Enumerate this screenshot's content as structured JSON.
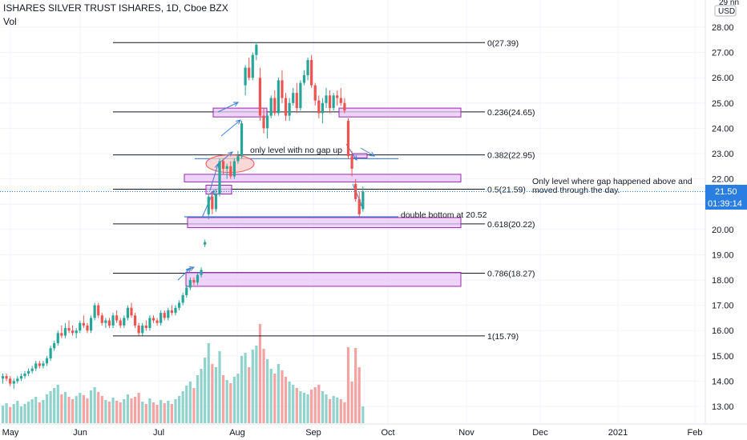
{
  "header": {
    "symbol_line": "ISHARES SILVER TRUST ISHARES, 1D, Cboe BZX",
    "indicator": "Vol"
  },
  "price_scale": {
    "currency_top": "29 nn",
    "currency": "USD",
    "current_price": "21.50",
    "countdown": "01:39:14"
  },
  "colors": {
    "up": "#26a69a",
    "down": "#ef5350",
    "vol_up": "#8fd3cc",
    "vol_down": "#f4a3a2",
    "zone_fill": "#e7c6f5",
    "zone_stroke": "#9c27b0",
    "arrow": "#3d7fd6",
    "price_label_bg": "#2a7de1"
  },
  "annotations": {
    "no_gap": "only level with no gap up",
    "gap_above": "Only level where gap happened above and moved through the day.",
    "double_bottom": "double bottom at 20.52"
  },
  "chart_data": {
    "type": "candlestick",
    "title": "ISHARES SILVER TRUST ISHARES, 1D, Cboe BZX",
    "ylim": [
      12.4,
      29.2
    ],
    "y_ticks": [
      "13.00",
      "14.00",
      "15.00",
      "16.00",
      "17.00",
      "18.00",
      "19.00",
      "20.00",
      "21.00",
      "22.00",
      "23.00",
      "24.00",
      "25.00",
      "26.00",
      "27.00",
      "28.00"
    ],
    "x_ticks": [
      "May",
      "Jun",
      "Jul",
      "Aug",
      "Sep",
      "Oct",
      "Nov",
      "Dec",
      "2021",
      "Feb"
    ],
    "fib_levels": [
      {
        "label": "0(27.39)",
        "price": 27.39
      },
      {
        "label": "0.236(24.65)",
        "price": 24.65
      },
      {
        "label": "0.382(22.95)",
        "price": 22.95
      },
      {
        "label": "0.5(21.59)",
        "price": 21.59
      },
      {
        "label": "0.618(20.22)",
        "price": 20.22
      },
      {
        "label": "0.786(18.27)",
        "price": 18.27
      },
      {
        "label": "1(15.79)",
        "price": 15.79
      }
    ],
    "candles": [
      [
        14.1,
        14.3,
        13.9,
        14.2
      ],
      [
        14.2,
        14.3,
        14.0,
        14.1
      ],
      [
        14.1,
        14.2,
        13.8,
        13.9
      ],
      [
        13.9,
        14.1,
        13.7,
        14.0
      ],
      [
        14.0,
        14.2,
        13.9,
        14.1
      ],
      [
        14.1,
        14.3,
        14.0,
        14.2
      ],
      [
        14.2,
        14.4,
        14.1,
        14.3
      ],
      [
        14.3,
        14.5,
        14.2,
        14.4
      ],
      [
        14.4,
        14.6,
        14.3,
        14.5
      ],
      [
        14.5,
        14.8,
        14.4,
        14.7
      ],
      [
        14.7,
        14.8,
        14.5,
        14.6
      ],
      [
        14.6,
        14.8,
        14.5,
        14.7
      ],
      [
        14.7,
        15.0,
        14.6,
        14.9
      ],
      [
        14.9,
        15.4,
        14.8,
        15.3
      ],
      [
        15.3,
        15.6,
        15.2,
        15.5
      ],
      [
        15.5,
        16.0,
        15.4,
        15.9
      ],
      [
        15.9,
        16.2,
        15.7,
        15.8
      ],
      [
        15.8,
        16.3,
        15.7,
        16.1
      ],
      [
        16.1,
        16.4,
        15.9,
        16.0
      ],
      [
        16.0,
        16.2,
        15.8,
        15.9
      ],
      [
        15.9,
        16.1,
        15.7,
        16.0
      ],
      [
        16.0,
        16.4,
        15.9,
        16.3
      ],
      [
        16.3,
        16.6,
        16.1,
        16.2
      ],
      [
        16.2,
        16.3,
        15.9,
        16.0
      ],
      [
        16.0,
        16.6,
        15.9,
        16.5
      ],
      [
        16.5,
        17.1,
        16.4,
        17.0
      ],
      [
        17.0,
        17.1,
        16.5,
        16.6
      ],
      [
        16.6,
        16.7,
        16.2,
        16.3
      ],
      [
        16.3,
        16.5,
        16.1,
        16.4
      ],
      [
        16.4,
        16.5,
        16.1,
        16.2
      ],
      [
        16.2,
        16.7,
        16.1,
        16.6
      ],
      [
        16.6,
        16.8,
        16.3,
        16.4
      ],
      [
        16.4,
        16.5,
        16.1,
        16.2
      ],
      [
        16.2,
        16.6,
        16.1,
        16.5
      ],
      [
        16.5,
        17.0,
        16.4,
        16.9
      ],
      [
        16.9,
        17.1,
        16.5,
        16.6
      ],
      [
        16.6,
        16.7,
        16.1,
        16.2
      ],
      [
        16.2,
        16.3,
        15.8,
        15.9
      ],
      [
        15.9,
        16.3,
        15.8,
        16.2
      ],
      [
        16.2,
        16.4,
        16.0,
        16.1
      ],
      [
        16.1,
        16.6,
        16.0,
        16.5
      ],
      [
        16.5,
        16.6,
        16.3,
        16.4
      ],
      [
        16.4,
        16.5,
        16.2,
        16.3
      ],
      [
        16.3,
        16.8,
        16.2,
        16.7
      ],
      [
        16.7,
        16.8,
        16.4,
        16.5
      ],
      [
        16.5,
        16.9,
        16.4,
        16.8
      ],
      [
        16.8,
        17.0,
        16.6,
        16.7
      ],
      [
        16.7,
        17.0,
        16.6,
        16.9
      ],
      [
        16.9,
        17.2,
        16.8,
        17.1
      ],
      [
        17.1,
        17.5,
        17.0,
        17.4
      ],
      [
        17.4,
        17.8,
        17.3,
        17.7
      ],
      [
        17.7,
        18.1,
        17.6,
        18.0
      ],
      [
        18.0,
        18.1,
        17.8,
        17.9
      ],
      [
        17.9,
        18.3,
        17.8,
        18.2
      ],
      [
        18.2,
        18.5,
        18.1,
        18.4
      ],
      [
        19.4,
        19.6,
        19.3,
        19.5
      ],
      [
        20.6,
        21.4,
        20.4,
        21.3
      ],
      [
        21.3,
        21.5,
        20.6,
        20.8
      ],
      [
        20.8,
        21.6,
        20.7,
        21.4
      ],
      [
        21.4,
        22.8,
        21.3,
        22.7
      ],
      [
        22.7,
        22.8,
        22.2,
        22.4
      ],
      [
        22.4,
        22.6,
        22.0,
        22.5
      ],
      [
        22.5,
        22.7,
        22.0,
        22.1
      ],
      [
        22.1,
        22.8,
        22.0,
        22.7
      ],
      [
        22.7,
        23.1,
        22.6,
        22.9
      ],
      [
        22.9,
        24.3,
        22.8,
        24.2
      ],
      [
        25.7,
        26.5,
        25.3,
        26.4
      ],
      [
        26.4,
        26.8,
        25.9,
        26.0
      ],
      [
        26.0,
        27.0,
        25.9,
        26.9
      ],
      [
        26.9,
        27.4,
        26.7,
        27.3
      ],
      [
        26.0,
        26.4,
        24.3,
        24.5
      ],
      [
        24.5,
        24.8,
        23.8,
        24.0
      ],
      [
        24.0,
        24.6,
        23.6,
        24.5
      ],
      [
        24.5,
        25.3,
        24.4,
        25.2
      ],
      [
        25.2,
        25.5,
        24.5,
        24.6
      ],
      [
        24.6,
        26.0,
        24.5,
        25.9
      ],
      [
        25.9,
        26.3,
        25.0,
        25.2
      ],
      [
        25.2,
        25.4,
        24.3,
        24.5
      ],
      [
        24.5,
        25.2,
        24.3,
        25.0
      ],
      [
        25.0,
        25.6,
        24.9,
        25.4
      ],
      [
        25.4,
        25.8,
        24.6,
        24.8
      ],
      [
        24.8,
        25.9,
        24.7,
        25.8
      ],
      [
        25.8,
        26.3,
        25.7,
        26.1
      ],
      [
        26.1,
        26.8,
        25.9,
        26.7
      ],
      [
        26.7,
        26.9,
        25.6,
        25.7
      ],
      [
        25.7,
        25.8,
        24.9,
        25.1
      ],
      [
        25.1,
        25.3,
        24.4,
        24.6
      ],
      [
        24.6,
        25.2,
        24.2,
        25.0
      ],
      [
        25.0,
        25.6,
        24.8,
        25.3
      ],
      [
        25.3,
        25.5,
        24.6,
        24.8
      ],
      [
        24.8,
        25.4,
        24.7,
        25.3
      ],
      [
        25.3,
        25.5,
        24.9,
        25.2
      ],
      [
        25.2,
        25.6,
        24.9,
        25.0
      ],
      [
        25.0,
        25.2,
        24.6,
        24.7
      ],
      [
        24.3,
        24.4,
        22.8,
        22.9
      ],
      [
        22.9,
        23.1,
        22.1,
        22.4
      ],
      [
        21.8,
        22.0,
        21.1,
        21.2
      ],
      [
        21.2,
        21.5,
        20.5,
        20.6
      ],
      [
        20.8,
        21.7,
        20.7,
        21.5
      ]
    ],
    "volume": [
      [
        22,
        1
      ],
      [
        25,
        1
      ],
      [
        20,
        0
      ],
      [
        24,
        1
      ],
      [
        28,
        1
      ],
      [
        21,
        1
      ],
      [
        24,
        1
      ],
      [
        27,
        1
      ],
      [
        30,
        1
      ],
      [
        33,
        1
      ],
      [
        26,
        0
      ],
      [
        29,
        1
      ],
      [
        36,
        1
      ],
      [
        40,
        1
      ],
      [
        44,
        1
      ],
      [
        48,
        1
      ],
      [
        36,
        0
      ],
      [
        39,
        1
      ],
      [
        33,
        0
      ],
      [
        30,
        0
      ],
      [
        34,
        1
      ],
      [
        38,
        1
      ],
      [
        35,
        0
      ],
      [
        31,
        0
      ],
      [
        41,
        1
      ],
      [
        45,
        1
      ],
      [
        39,
        0
      ],
      [
        34,
        0
      ],
      [
        29,
        1
      ],
      [
        27,
        0
      ],
      [
        32,
        1
      ],
      [
        28,
        0
      ],
      [
        26,
        0
      ],
      [
        30,
        1
      ],
      [
        36,
        1
      ],
      [
        31,
        0
      ],
      [
        33,
        0
      ],
      [
        38,
        0
      ],
      [
        27,
        1
      ],
      [
        24,
        0
      ],
      [
        31,
        1
      ],
      [
        26,
        0
      ],
      [
        23,
        0
      ],
      [
        29,
        1
      ],
      [
        25,
        0
      ],
      [
        28,
        1
      ],
      [
        24,
        0
      ],
      [
        30,
        1
      ],
      [
        34,
        1
      ],
      [
        40,
        1
      ],
      [
        47,
        1
      ],
      [
        52,
        1
      ],
      [
        44,
        0
      ],
      [
        60,
        1
      ],
      [
        68,
        1
      ],
      [
        82,
        1
      ],
      [
        100,
        1
      ],
      [
        74,
        0
      ],
      [
        70,
        1
      ],
      [
        90,
        1
      ],
      [
        60,
        0
      ],
      [
        54,
        1
      ],
      [
        50,
        0
      ],
      [
        58,
        1
      ],
      [
        62,
        1
      ],
      [
        84,
        1
      ],
      [
        88,
        1
      ],
      [
        70,
        0
      ],
      [
        92,
        1
      ],
      [
        97,
        1
      ],
      [
        124,
        0
      ],
      [
        93,
        0
      ],
      [
        80,
        1
      ],
      [
        68,
        1
      ],
      [
        62,
        0
      ],
      [
        74,
        1
      ],
      [
        66,
        0
      ],
      [
        58,
        0
      ],
      [
        52,
        1
      ],
      [
        48,
        1
      ],
      [
        44,
        0
      ],
      [
        40,
        1
      ],
      [
        38,
        1
      ],
      [
        36,
        1
      ],
      [
        42,
        0
      ],
      [
        45,
        0
      ],
      [
        48,
        0
      ],
      [
        40,
        1
      ],
      [
        36,
        1
      ],
      [
        30,
        0
      ],
      [
        34,
        1
      ],
      [
        32,
        1
      ],
      [
        30,
        0
      ],
      [
        26,
        0
      ],
      [
        95,
        0
      ],
      [
        52,
        0
      ],
      [
        94,
        0
      ],
      [
        70,
        0
      ],
      [
        21,
        1
      ]
    ]
  }
}
